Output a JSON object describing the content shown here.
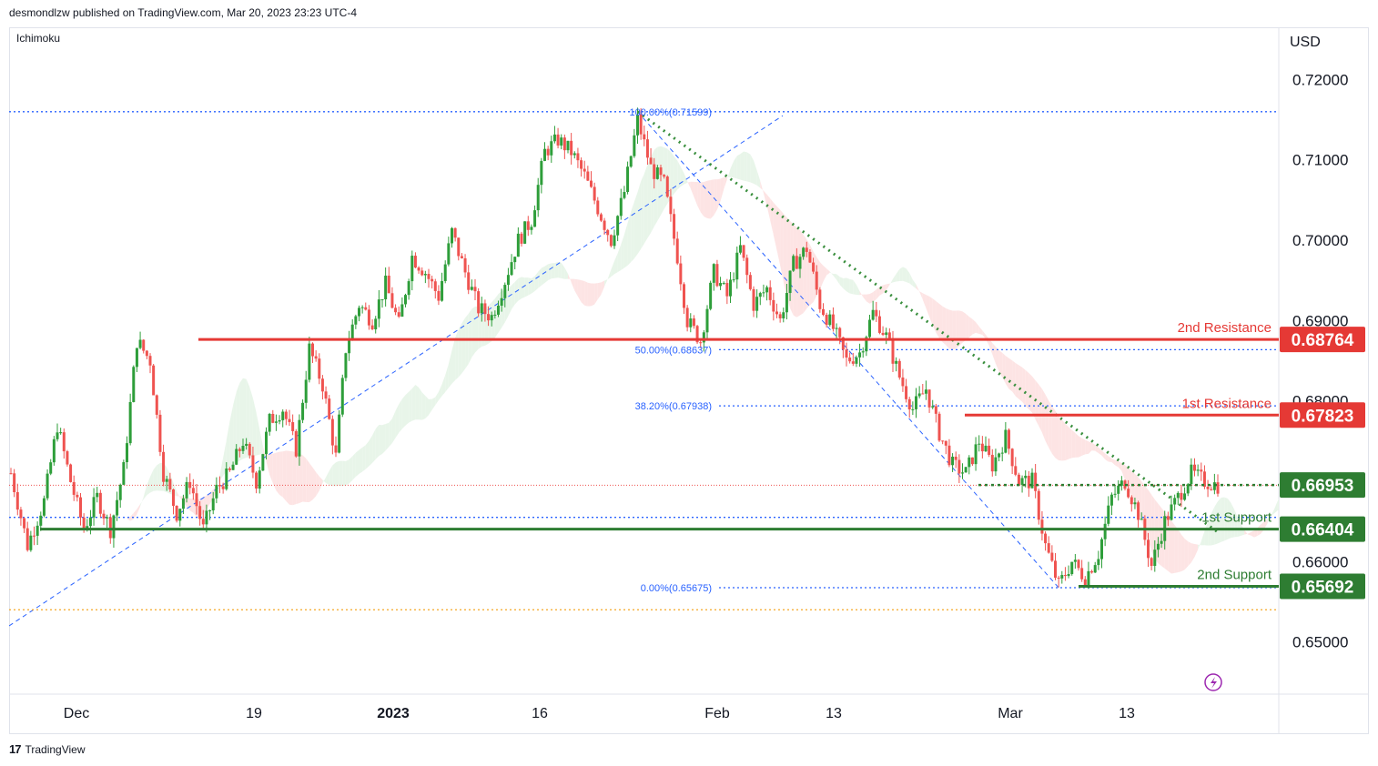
{
  "header": {
    "publisher_line": "desmondlzw published on TradingView.com, Mar 20, 2023 23:23 UTC-4"
  },
  "indicator_label": "Ichimoku",
  "footer": {
    "logo": "17",
    "brand": "TradingView"
  },
  "colors": {
    "bull": "#26a69a",
    "bull_candle": "#2e9e3a",
    "bear": "#ef5350",
    "resistance": "#e53935",
    "support": "#2e7d32",
    "fib": "#2962ff",
    "trend": "#388e3c",
    "cloud_bull": "#e8f5e9",
    "cloud_bear": "#fde4e4"
  },
  "chart_data": {
    "type": "candlestick",
    "title": "",
    "currency": "USD",
    "ylim": [
      0.6435,
      0.7265
    ],
    "y_ticks": [
      "0.72000",
      "0.71000",
      "0.70000",
      "0.69000",
      "0.68000",
      "0.67000",
      "0.66000",
      "0.65000"
    ],
    "y_tick_values": [
      0.72,
      0.71,
      0.7,
      0.69,
      0.68,
      0.67,
      0.66,
      0.65
    ],
    "x_ticks": [
      {
        "label": "Dec",
        "bold": false
      },
      {
        "label": "19",
        "bold": false
      },
      {
        "label": "2023",
        "bold": true
      },
      {
        "label": "16",
        "bold": false
      },
      {
        "label": "Feb",
        "bold": false
      },
      {
        "label": "13",
        "bold": false
      },
      {
        "label": "Mar",
        "bold": false
      },
      {
        "label": "13",
        "bold": false
      }
    ],
    "levels": [
      {
        "label": "2nd Resistance",
        "value": "0.68764",
        "y": 0.68764,
        "kind": "resistance"
      },
      {
        "label": "1st Resistance",
        "value": "0.67823",
        "y": 0.67823,
        "kind": "resistance"
      },
      {
        "label": "",
        "value": "0.66953",
        "y": 0.66953,
        "kind": "support"
      },
      {
        "label": "1st Support",
        "value": "0.66404",
        "y": 0.66404,
        "kind": "support"
      },
      {
        "label": "2nd Support",
        "value": "0.65692",
        "y": 0.65692,
        "kind": "support"
      }
    ],
    "fib_levels": [
      {
        "label": "100.00%(0.71599)",
        "y": 0.71599
      },
      {
        "label": "50.00%(0.68637)",
        "y": 0.68637
      },
      {
        "label": "38.20%(0.67938)",
        "y": 0.67938
      },
      {
        "label": "0.00%(0.65675)",
        "y": 0.65675
      }
    ],
    "ohlc_path": [
      [
        0,
        0.671
      ],
      [
        5,
        0.662
      ],
      [
        10,
        0.6675
      ],
      [
        14,
        0.677
      ],
      [
        18,
        0.67
      ],
      [
        22,
        0.664
      ],
      [
        26,
        0.668
      ],
      [
        30,
        0.664
      ],
      [
        34,
        0.6715
      ],
      [
        38,
        0.6875
      ],
      [
        42,
        0.685
      ],
      [
        46,
        0.671
      ],
      [
        50,
        0.666
      ],
      [
        54,
        0.67
      ],
      [
        58,
        0.664
      ],
      [
        62,
        0.669
      ],
      [
        66,
        0.671
      ],
      [
        70,
        0.675
      ],
      [
        74,
        0.67
      ],
      [
        78,
        0.6775
      ],
      [
        82,
        0.679
      ],
      [
        86,
        0.674
      ],
      [
        90,
        0.6865
      ],
      [
        94,
        0.682
      ],
      [
        98,
        0.673
      ],
      [
        101,
        0.6865
      ],
      [
        105,
        0.692
      ],
      [
        109,
        0.69
      ],
      [
        113,
        0.6945
      ],
      [
        117,
        0.6895
      ],
      [
        121,
        0.698
      ],
      [
        125,
        0.696
      ],
      [
        129,
        0.693
      ],
      [
        133,
        0.701
      ],
      [
        137,
        0.696
      ],
      [
        141,
        0.6915
      ],
      [
        145,
        0.6905
      ],
      [
        149,
        0.695
      ],
      [
        153,
        0.7
      ],
      [
        157,
        0.7025
      ],
      [
        161,
        0.711
      ],
      [
        165,
        0.7125
      ],
      [
        169,
        0.711
      ],
      [
        173,
        0.708
      ],
      [
        177,
        0.704
      ],
      [
        181,
        0.7
      ],
      [
        185,
        0.706
      ],
      [
        189,
        0.715
      ],
      [
        193,
        0.709
      ],
      [
        197,
        0.707
      ],
      [
        201,
        0.698
      ],
      [
        204,
        0.69
      ],
      [
        208,
        0.6875
      ],
      [
        212,
        0.696
      ],
      [
        216,
        0.693
      ],
      [
        220,
        0.699
      ],
      [
        224,
        0.692
      ],
      [
        228,
        0.694
      ],
      [
        232,
        0.69
      ],
      [
        236,
        0.697
      ],
      [
        240,
        0.699
      ],
      [
        244,
        0.692
      ],
      [
        248,
        0.689
      ],
      [
        252,
        0.685
      ],
      [
        256,
        0.686
      ],
      [
        260,
        0.691
      ],
      [
        264,
        0.688
      ],
      [
        268,
        0.683
      ],
      [
        272,
        0.679
      ],
      [
        276,
        0.6815
      ],
      [
        280,
        0.676
      ],
      [
        284,
        0.672
      ],
      [
        288,
        0.671
      ],
      [
        292,
        0.675
      ],
      [
        296,
        0.672
      ],
      [
        300,
        0.6755
      ],
      [
        304,
        0.67
      ],
      [
        308,
        0.67
      ],
      [
        312,
        0.662
      ],
      [
        316,
        0.657
      ],
      [
        320,
        0.66
      ],
      [
        324,
        0.658
      ],
      [
        328,
        0.661
      ],
      [
        332,
        0.668
      ],
      [
        336,
        0.67
      ],
      [
        340,
        0.666
      ],
      [
        344,
        0.6595
      ],
      [
        348,
        0.665
      ],
      [
        352,
        0.668
      ],
      [
        356,
        0.671
      ],
      [
        360,
        0.67
      ],
      [
        364,
        0.6695
      ]
    ],
    "x_count": 364
  }
}
